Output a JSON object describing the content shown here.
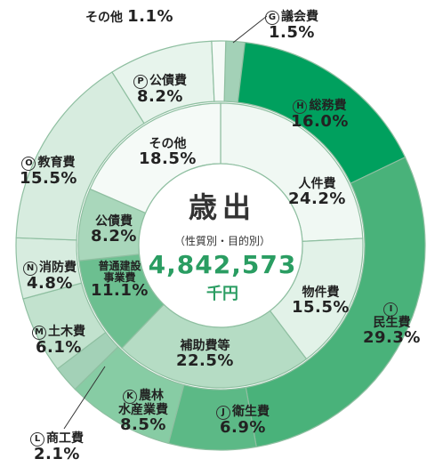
{
  "chart_data": {
    "type": "pie",
    "title": "歳出",
    "subtitle": "（性質別・目的別）",
    "total": "4,842,573",
    "unit": "千円",
    "outer": [
      {
        "letter": "G",
        "name": "議会費",
        "value": 1.5,
        "label": "1.5%",
        "color": "#a3d1b7"
      },
      {
        "letter": "H",
        "name": "総務費",
        "value": 16.0,
        "label": "16.0%",
        "color": "#00a05e"
      },
      {
        "letter": "I",
        "name": "民生費",
        "value": 29.3,
        "label": "29.3%",
        "color": "#49b27a"
      },
      {
        "letter": "J",
        "name": "衛生費",
        "value": 6.9,
        "label": "6.9%",
        "color": "#5cb986"
      },
      {
        "letter": "K",
        "name": "農林\n水産業費",
        "value": 8.5,
        "label": "8.5%",
        "color": "#87cca4"
      },
      {
        "letter": "L",
        "name": "商工費",
        "value": 2.1,
        "label": "2.1%",
        "color": "#a3d1b7"
      },
      {
        "letter": "M",
        "name": "土木費",
        "value": 6.1,
        "label": "6.1%",
        "color": "#c2e2ce"
      },
      {
        "letter": "N",
        "name": "消防費",
        "value": 4.8,
        "label": "4.8%",
        "color": "#d7ecdf"
      },
      {
        "letter": "O",
        "name": "教育費",
        "value": 15.5,
        "label": "15.5%",
        "color": "#d7ecdf"
      },
      {
        "letter": "P",
        "name": "公債費",
        "value": 8.2,
        "label": "8.2%",
        "color": "#e7f4ec"
      },
      {
        "letter": "",
        "name": "その他",
        "value": 1.1,
        "label": "1.1%",
        "color": "#f5faf7"
      }
    ],
    "inner": [
      {
        "name": "人件費",
        "value": 24.2,
        "label": "24.2%",
        "color": "#f0f8f3"
      },
      {
        "name": "物件費",
        "value": 15.5,
        "label": "15.5%",
        "color": "#e2f2e8"
      },
      {
        "name": "補助費等",
        "value": 22.5,
        "label": "22.5%",
        "color": "#b5dcc4"
      },
      {
        "name": "普通建設\n事業費",
        "value": 11.1,
        "label": "11.1%",
        "color": "#6cbf90"
      },
      {
        "name": "公債費",
        "value": 8.2,
        "label": "8.2%",
        "color": "#a9d7bb"
      },
      {
        "name": "その他",
        "value": 18.5,
        "label": "18.5%",
        "color": "#f5faf7"
      }
    ]
  }
}
